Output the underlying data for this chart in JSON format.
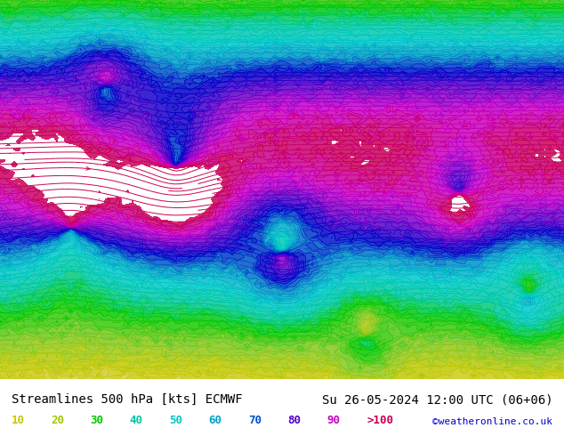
{
  "title_left": "Streamlines 500 hPa [kts] ECMWF",
  "title_right": "Su 26-05-2024 12:00 UTC (06+06)",
  "copyright": "©weatheronline.co.uk",
  "bg_color": "#f0ede8",
  "map_bg": "#f5f5f0",
  "legend_values": [
    "10",
    "20",
    "30",
    "40",
    "50",
    "60",
    "70",
    "80",
    "90",
    ">100"
  ],
  "legend_colors": [
    "#c8c800",
    "#a0c800",
    "#00c800",
    "#00c8a0",
    "#00c8c8",
    "#00a0c8",
    "#0050c8",
    "#5000c8",
    "#c800c8",
    "#c80050"
  ],
  "streamline_colormap": "custom",
  "speed_levels": [
    0,
    10,
    20,
    30,
    40,
    50,
    60,
    70,
    80,
    90,
    100
  ],
  "speed_colors": [
    "#e8e8e0",
    "#c8c800",
    "#80c820",
    "#00c800",
    "#00c8a0",
    "#00c8c8",
    "#0096c8",
    "#0000c8",
    "#6400c8",
    "#c800c8",
    "#c80050"
  ],
  "figsize": [
    6.34,
    4.9
  ],
  "dpi": 100,
  "bottom_bar_color": "#ffffff",
  "bottom_bar_height": 0.13,
  "title_fontsize": 10,
  "legend_fontsize": 9,
  "copyright_fontsize": 8,
  "font_family": "monospace"
}
